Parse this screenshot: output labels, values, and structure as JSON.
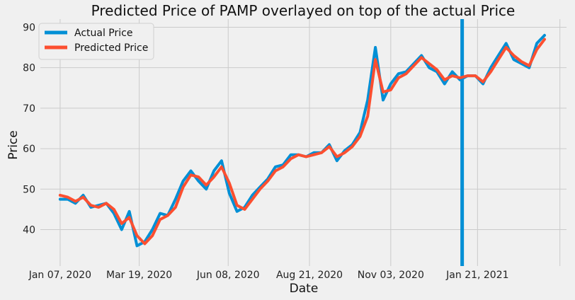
{
  "chart_data": {
    "type": "line",
    "title": "Predicted Price of PAMP overlayed on top of the actual Price",
    "xlabel": "Date",
    "ylabel": "Price",
    "x_tick_labels": [
      "Jan 07, 2020",
      "Mar 19, 2020",
      "Jun 08, 2020",
      "Aug 21, 2020",
      "Nov 03, 2020",
      "Jan 21, 2021"
    ],
    "y_ticks": [
      40,
      50,
      60,
      70,
      80,
      90
    ],
    "ylim": [
      31,
      92
    ],
    "grid": true,
    "legend_position": "top-left",
    "vertical_marker": {
      "date": "2021-01-07",
      "color": "#008fd5"
    },
    "x": [
      "2020-01-07",
      "2020-01-14",
      "2020-01-21",
      "2020-01-28",
      "2020-02-04",
      "2020-02-11",
      "2020-02-18",
      "2020-02-25",
      "2020-03-03",
      "2020-03-10",
      "2020-03-17",
      "2020-03-24",
      "2020-03-31",
      "2020-04-07",
      "2020-04-14",
      "2020-04-21",
      "2020-04-28",
      "2020-05-05",
      "2020-05-12",
      "2020-05-19",
      "2020-05-26",
      "2020-06-02",
      "2020-06-09",
      "2020-06-16",
      "2020-06-23",
      "2020-06-30",
      "2020-07-07",
      "2020-07-14",
      "2020-07-21",
      "2020-07-28",
      "2020-08-04",
      "2020-08-11",
      "2020-08-18",
      "2020-08-25",
      "2020-09-01",
      "2020-09-08",
      "2020-09-15",
      "2020-09-22",
      "2020-09-29",
      "2020-10-06",
      "2020-10-13",
      "2020-10-20",
      "2020-10-27",
      "2020-11-03",
      "2020-11-10",
      "2020-11-17",
      "2020-11-24",
      "2020-12-01",
      "2020-12-08",
      "2020-12-15",
      "2020-12-22",
      "2020-12-29",
      "2021-01-05",
      "2021-01-12",
      "2021-01-19",
      "2021-01-26",
      "2021-02-02",
      "2021-02-09",
      "2021-02-16",
      "2021-02-23",
      "2021-03-02",
      "2021-03-09",
      "2021-03-16",
      "2021-03-23"
    ],
    "series": [
      {
        "name": "Actual Price",
        "color": "#008fd5",
        "values": [
          47.5,
          47.5,
          46.5,
          48.5,
          45.5,
          46.0,
          46.5,
          44.0,
          40.0,
          44.5,
          36.0,
          37.0,
          40.0,
          44.0,
          43.5,
          47.5,
          52.0,
          54.5,
          52.0,
          50.0,
          54.5,
          57.0,
          49.0,
          44.5,
          45.5,
          48.5,
          50.5,
          52.5,
          55.5,
          56.0,
          58.5,
          58.5,
          58.0,
          59.0,
          59.0,
          61.0,
          57.0,
          59.5,
          61.0,
          64.0,
          72.0,
          85.0,
          72.0,
          76.0,
          78.5,
          79.0,
          81.0,
          83.0,
          80.0,
          79.0,
          76.0,
          79.0,
          77.0,
          78.0,
          78.0,
          76.0,
          80.0,
          83.0,
          86.0,
          82.0,
          81.0,
          80.0,
          86.0,
          88.0
        ]
      },
      {
        "name": "Predicted Price",
        "color": "#fc4f30",
        "values": [
          48.5,
          48.0,
          47.0,
          48.0,
          46.0,
          45.5,
          46.5,
          45.0,
          41.5,
          43.0,
          38.5,
          36.5,
          38.5,
          42.5,
          43.5,
          45.5,
          50.5,
          53.5,
          53.0,
          51.0,
          53.0,
          55.5,
          51.5,
          46.0,
          45.0,
          47.5,
          50.0,
          52.0,
          54.5,
          55.5,
          57.5,
          58.5,
          58.0,
          58.5,
          59.0,
          60.5,
          58.0,
          59.0,
          60.5,
          63.0,
          68.0,
          82.0,
          74.0,
          74.5,
          77.5,
          78.5,
          80.5,
          82.5,
          81.0,
          79.5,
          77.0,
          78.0,
          77.5,
          78.0,
          78.0,
          76.5,
          79.0,
          82.0,
          85.0,
          83.0,
          81.5,
          80.5,
          84.5,
          87.0
        ]
      }
    ]
  }
}
